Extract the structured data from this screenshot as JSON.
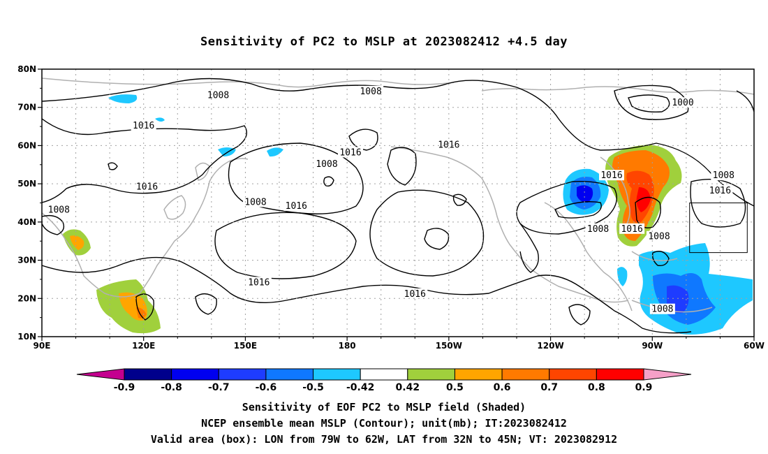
{
  "title": "Sensitivity of PC2 to MSLP at 2023082412 +4.5 day",
  "captions": [
    "Sensitivity of EOF PC2 to MSLP field (Shaded)",
    "NCEP ensemble mean MSLP (Contour); unit(mb); IT:2023082412",
    "Valid area (box): LON from 79W to 62W, LAT from 32N to 45N; VT: 2023082912"
  ],
  "map": {
    "lon_range": [
      90,
      300
    ],
    "lat_range": [
      10,
      80
    ],
    "lat_labels": [
      "10N",
      "20N",
      "30N",
      "40N",
      "50N",
      "60N",
      "70N",
      "80N"
    ],
    "lat_values": [
      10,
      20,
      30,
      40,
      50,
      60,
      70,
      80
    ],
    "lon_labels": [
      "90E",
      "120E",
      "150E",
      "180",
      "150W",
      "120W",
      "90W",
      "60W"
    ],
    "lon_values": [
      90,
      120,
      150,
      180,
      210,
      240,
      270,
      300
    ],
    "valid_box": {
      "lon": [
        281,
        298
      ],
      "lat": [
        32,
        45
      ]
    },
    "contour_labels": [
      {
        "text": "1008",
        "lon": 142,
        "lat": 73
      },
      {
        "text": "1008",
        "lon": 187,
        "lat": 74
      },
      {
        "text": "1000",
        "lon": 279,
        "lat": 71
      },
      {
        "text": "1016",
        "lon": 120,
        "lat": 65
      },
      {
        "text": "1016",
        "lon": 181,
        "lat": 58
      },
      {
        "text": "1016",
        "lon": 210,
        "lat": 60
      },
      {
        "text": "1008",
        "lon": 174,
        "lat": 55
      },
      {
        "text": "1016",
        "lon": 258,
        "lat": 52
      },
      {
        "text": "1008",
        "lon": 291,
        "lat": 52
      },
      {
        "text": "1016",
        "lon": 121,
        "lat": 49
      },
      {
        "text": "1016",
        "lon": 290,
        "lat": 48
      },
      {
        "text": "1008",
        "lon": 153,
        "lat": 45
      },
      {
        "text": "1016",
        "lon": 165,
        "lat": 44
      },
      {
        "text": "1008",
        "lon": 95,
        "lat": 43
      },
      {
        "text": "1008",
        "lon": 254,
        "lat": 38
      },
      {
        "text": "1016",
        "lon": 264,
        "lat": 38
      },
      {
        "text": "1008",
        "lon": 272,
        "lat": 36
      },
      {
        "text": "1016",
        "lon": 154,
        "lat": 24
      },
      {
        "text": "1016",
        "lon": 200,
        "lat": 21
      },
      {
        "text": "1008",
        "lon": 273,
        "lat": 17
      }
    ]
  },
  "colorbar": {
    "colors": [
      "#c4008f",
      "#00008c",
      "#0000f0",
      "#1e3cff",
      "#0f78ff",
      "#1ec8ff",
      "#ffffff",
      "#a0d03c",
      "#ffa500",
      "#ff7a00",
      "#ff4500",
      "#ff0000",
      "#f5a0c8"
    ],
    "labels": [
      "-0.9",
      "-0.8",
      "-0.7",
      "-0.6",
      "-0.5",
      "-0.42",
      "0.42",
      "0.5",
      "0.6",
      "0.7",
      "0.8",
      "0.9"
    ]
  }
}
